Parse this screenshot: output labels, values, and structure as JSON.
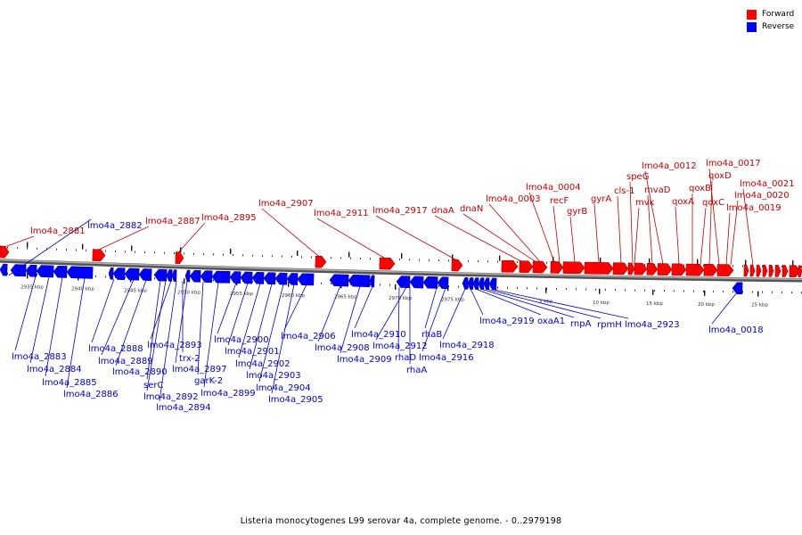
{
  "legend": {
    "forward_label": "Forward",
    "reverse_label": "Reverse",
    "forward_color": "#ff0000",
    "reverse_color": "#0000ff"
  },
  "caption": "Listeria monocytogenes L99 serovar 4a, complete genome. - 0..2979198",
  "tick_labels": [
    "2935 kbp",
    "2940 kbp",
    "2945 kbp",
    "2950 kbp",
    "2955 kbp",
    "2960 kbp",
    "2965 kbp",
    "2970 kbp",
    "2975 kbp",
    "5 kbp",
    "10 kbp",
    "15 kbp",
    "20 kbp",
    "25 kbp"
  ],
  "forward_genes": [
    "lmo4a_2881",
    "lmo4a_2887",
    "lmo4a_2895",
    "lmo4a_2907",
    "lmo4a_2911",
    "lmo4a_2917",
    "dnaA",
    "dnaN",
    "lmo4a_0003",
    "lmo4a_0004",
    "recF",
    "gyrB",
    "gyrA",
    "cls-1",
    "speG",
    "mvk",
    "mvaD",
    "lmo4a_0012",
    "qoxA",
    "qoxB",
    "qoxC",
    "qoxD",
    "lmo4a_0017",
    "lmo4a_0019",
    "lmo4a_0020",
    "lmo4a_0021"
  ],
  "reverse_genes": [
    "lmo4a_2882",
    "lmo4a_2883",
    "lmo4a_2884",
    "lmo4a_2885",
    "lmo4a_2886",
    "lmo4a_2888",
    "lmo4a_2889",
    "lmo4a_2890",
    "serC",
    "lmo4a_2892",
    "lmo4a_2893",
    "lmo4a_2894",
    "trx-2",
    "lmo4a_2897",
    "garK-2",
    "lmo4a_2899",
    "lmo4a_2900",
    "lmo4a_2901",
    "lmo4a_2902",
    "lmo4a_2903",
    "lmo4a_2904",
    "lmo4a_2905",
    "lmo4a_2906",
    "lmo4a_2908",
    "lmo4a_2909",
    "lmo4a_2910",
    "rhaD",
    "lmo4a_2912",
    "rhaA",
    "rhaB",
    "lmo4a_2916",
    "lmo4a_2918",
    "lmo4a_2919",
    "oxaA1",
    "rnpA",
    "rpmH",
    "lmo4a_2923",
    "lmo4a_0018"
  ]
}
